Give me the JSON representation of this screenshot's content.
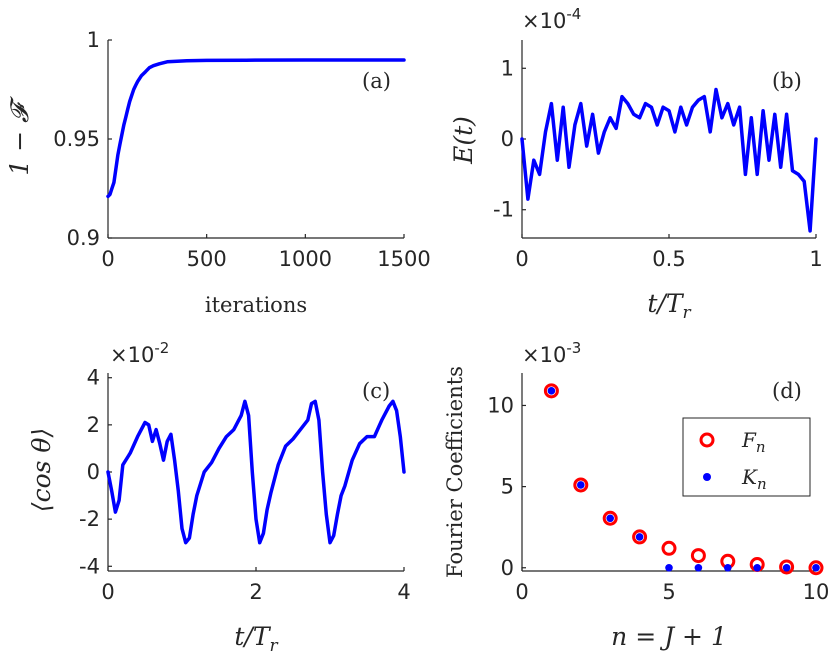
{
  "chart_data": [
    {
      "id": "a",
      "type": "line",
      "panel_label": "(a)",
      "xlabel": "iterations",
      "ylabel": "1 − 𝓕",
      "xlim": [
        0,
        1500
      ],
      "ylim": [
        0.9,
        1.0
      ],
      "xticks": [
        0,
        500,
        1000,
        1500
      ],
      "yticks": [
        0.9,
        0.95,
        1.0
      ],
      "xtick_labels": [
        "0",
        "500",
        "1000",
        "1500"
      ],
      "ytick_labels": [
        "0.9",
        "0.95",
        "1"
      ],
      "exponent": "",
      "series": [
        {
          "name": "1-F",
          "color": "#0000ff",
          "x": [
            0,
            10,
            20,
            30,
            40,
            50,
            60,
            70,
            80,
            90,
            100,
            110,
            120,
            130,
            140,
            150,
            170,
            190,
            210,
            230,
            260,
            300,
            350,
            400,
            500,
            700,
            1000,
            1500
          ],
          "y": [
            0.921,
            0.922,
            0.925,
            0.928,
            0.935,
            0.942,
            0.947,
            0.952,
            0.957,
            0.961,
            0.965,
            0.969,
            0.972,
            0.975,
            0.977,
            0.979,
            0.982,
            0.984,
            0.986,
            0.987,
            0.988,
            0.989,
            0.9893,
            0.9895,
            0.9897,
            0.9898,
            0.9899,
            0.9899
          ]
        }
      ]
    },
    {
      "id": "b",
      "type": "line",
      "panel_label": "(b)",
      "xlabel": "t/T_r",
      "ylabel": "E(t)",
      "xlim": [
        0,
        1
      ],
      "ylim": [
        -1.4,
        1.4
      ],
      "xticks": [
        0,
        0.5,
        1
      ],
      "yticks": [
        -1,
        0,
        1
      ],
      "xtick_labels": [
        "0",
        "0.5",
        "1"
      ],
      "ytick_labels": [
        "-1",
        "0",
        "1"
      ],
      "exponent": "×10",
      "exponent_power": "-4",
      "series": [
        {
          "name": "E(t)",
          "color": "#0000ff",
          "x": [
            0,
            0.02,
            0.04,
            0.06,
            0.08,
            0.1,
            0.12,
            0.14,
            0.16,
            0.18,
            0.2,
            0.22,
            0.24,
            0.26,
            0.28,
            0.3,
            0.32,
            0.34,
            0.36,
            0.38,
            0.4,
            0.42,
            0.44,
            0.46,
            0.48,
            0.5,
            0.52,
            0.54,
            0.56,
            0.58,
            0.6,
            0.62,
            0.64,
            0.66,
            0.68,
            0.7,
            0.72,
            0.74,
            0.76,
            0.78,
            0.8,
            0.82,
            0.84,
            0.86,
            0.88,
            0.9,
            0.92,
            0.94,
            0.96,
            0.98,
            1.0
          ],
          "y": [
            0,
            -0.85,
            -0.3,
            -0.5,
            0.1,
            0.5,
            -0.3,
            0.45,
            -0.4,
            0.2,
            0.5,
            -0.1,
            0.35,
            -0.2,
            0.1,
            0.3,
            0.15,
            0.6,
            0.5,
            0.35,
            0.3,
            0.5,
            0.45,
            0.2,
            0.45,
            0.4,
            0.1,
            0.45,
            0.2,
            0.45,
            0.55,
            0.6,
            0.1,
            0.7,
            0.3,
            0.5,
            0.2,
            0.45,
            -0.5,
            0.3,
            -0.5,
            0.4,
            -0.3,
            0.35,
            -0.4,
            0.35,
            -0.45,
            -0.5,
            -0.6,
            -1.3,
            0
          ]
        }
      ]
    },
    {
      "id": "c",
      "type": "line",
      "panel_label": "(c)",
      "xlabel": "t/T_r",
      "ylabel": "⟨cos θ⟩",
      "xlim": [
        0,
        4
      ],
      "ylim": [
        -4.2,
        4.2
      ],
      "xticks": [
        0,
        2,
        4
      ],
      "yticks": [
        -4,
        -2,
        0,
        2,
        4
      ],
      "xtick_labels": [
        "0",
        "2",
        "4"
      ],
      "ytick_labels": [
        "-4",
        "-2",
        "0",
        "2",
        "4"
      ],
      "exponent": "×10",
      "exponent_power": "-2",
      "series": [
        {
          "name": "<cos theta>",
          "color": "#0000ff",
          "x": [
            0,
            0.05,
            0.1,
            0.15,
            0.2,
            0.3,
            0.4,
            0.5,
            0.55,
            0.6,
            0.65,
            0.7,
            0.75,
            0.8,
            0.85,
            0.9,
            0.95,
            1.0,
            1.05,
            1.1,
            1.15,
            1.2,
            1.3,
            1.4,
            1.5,
            1.6,
            1.7,
            1.8,
            1.85,
            1.9,
            1.95,
            2.0,
            2.05,
            2.1,
            2.15,
            2.2,
            2.3,
            2.4,
            2.5,
            2.6,
            2.7,
            2.75,
            2.8,
            2.85,
            2.9,
            2.95,
            3.0,
            3.05,
            3.1,
            3.15,
            3.2,
            3.3,
            3.4,
            3.5,
            3.6,
            3.7,
            3.8,
            3.85,
            3.9,
            3.95,
            4.0
          ],
          "y": [
            0,
            -0.8,
            -1.7,
            -1.2,
            0.3,
            0.8,
            1.5,
            2.1,
            2.0,
            1.3,
            1.8,
            1.2,
            0.5,
            1.3,
            1.6,
            0.5,
            -0.8,
            -2.4,
            -3.0,
            -2.8,
            -1.8,
            -1.0,
            0.0,
            0.4,
            1.0,
            1.5,
            1.8,
            2.4,
            3.0,
            2.4,
            0.0,
            -2.0,
            -3.0,
            -2.6,
            -1.6,
            -0.9,
            0.3,
            1.1,
            1.4,
            1.8,
            2.2,
            2.9,
            3.0,
            2.2,
            0.0,
            -1.8,
            -3.0,
            -2.7,
            -1.8,
            -1.0,
            -0.6,
            0.5,
            1.2,
            1.5,
            1.5,
            2.2,
            2.8,
            3.0,
            2.6,
            1.5,
            0
          ]
        }
      ]
    },
    {
      "id": "d",
      "type": "scatter",
      "panel_label": "(d)",
      "xlabel": "n = J + 1",
      "ylabel": "Fourier Coefficients",
      "xlim": [
        0,
        10
      ],
      "ylim": [
        -0.2,
        12
      ],
      "xticks": [
        0,
        5,
        10
      ],
      "yticks": [
        0,
        5,
        10
      ],
      "xtick_labels": [
        "0",
        "5",
        "10"
      ],
      "ytick_labels": [
        "0",
        "5",
        "10"
      ],
      "exponent": "×10",
      "exponent_power": "-3",
      "legend": {
        "location": "right",
        "entries": [
          "F",
          "K"
        ],
        "subscript": "n"
      },
      "series": [
        {
          "name": "F_n",
          "marker": "circle-open",
          "color": "#ff0000",
          "x": [
            1,
            2,
            3,
            4,
            5,
            6,
            7,
            8,
            9,
            10
          ],
          "y": [
            10.9,
            5.1,
            3.05,
            1.9,
            1.2,
            0.75,
            0.4,
            0.2,
            0.05,
            0.0
          ]
        },
        {
          "name": "K_n",
          "marker": "dot",
          "color": "#0000ff",
          "x": [
            1,
            2,
            3,
            4,
            5,
            6,
            7,
            8,
            9,
            10
          ],
          "y": [
            10.9,
            5.1,
            3.05,
            1.9,
            0.0,
            0.0,
            0.0,
            0.0,
            0.0,
            0.0
          ]
        }
      ]
    }
  ]
}
